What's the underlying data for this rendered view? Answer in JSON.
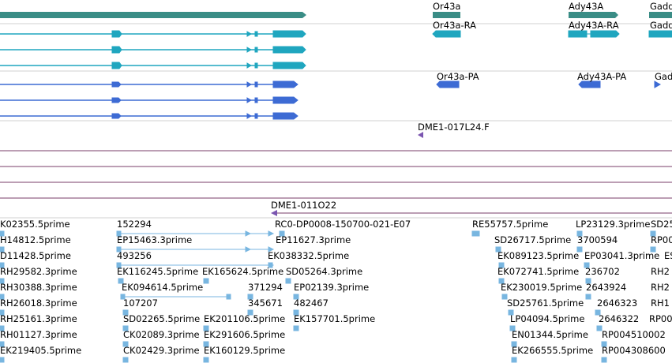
{
  "viewer": {
    "colors": {
      "gene": "#3a8d86",
      "transcript_cyan": "#1fa6bf",
      "transcript_blue": "#3d6bd4",
      "bac_end": "#7a55b0",
      "bac_line": "#7a3d6a",
      "est": "#78b6e0",
      "separator": "#d0d0d0"
    },
    "tracks": {
      "gene_labels": [
        "Or43a",
        "Ady43A",
        "Gadd"
      ],
      "cyan_transcript_labels": [
        "Or43a-RA",
        "Ady43A-RA",
        "Gadd"
      ],
      "blue_transcript_labels": [
        "Or43a-PA",
        "Ady43A-PA",
        "Gad"
      ],
      "bac_end_labels": [
        "DME1-017L24.F",
        "DME1-011O22"
      ],
      "est_labels": {
        "row1": [
          "K02355.5prime",
          "152294",
          "RC0-DP0008-150700-021-E07",
          "RE55757.5prime",
          "LP23129.3prime",
          "SD25"
        ],
        "row2": [
          "H14812.5prime",
          "EP15463.3prime",
          "EP11627.3prime",
          "SD26717.5prime",
          "3700594",
          "RP00"
        ],
        "row3": [
          "D11428.5prime",
          "493256",
          "EK038332.5prime",
          "EK089123.5prime",
          "EP03041.3prime",
          "ES"
        ],
        "row4": [
          "RH29582.3prime",
          "EK116245.5prime",
          "EK165624.5prime",
          "SD05264.3prime",
          "EK072741.5prime",
          "236702",
          "RH2"
        ],
        "row5": [
          "RH30388.3prime",
          "EK094614.5prime",
          "371294",
          "EP02139.3prime",
          "EK230019.5prime",
          "2643924",
          "RH2"
        ],
        "row6": [
          "RH26018.3prime",
          "107207",
          "345671",
          "482467",
          "SD25761.5prime",
          "2646323",
          "RH1"
        ],
        "row7": [
          "RH25161.3prime",
          "SD02265.5prime",
          "EK201106.5prime",
          "EK157701.5prime",
          "LP04094.5prime",
          "2646322",
          "RP00"
        ],
        "row8": [
          "RH01127.3prime",
          "CK02089.3prime",
          "EK291606.5prime",
          "EN01344.5prime",
          "RP004510002"
        ],
        "row9": [
          "EK219405.5prime",
          "CK02429.3prime",
          "EK160129.5prime",
          "EK266555.5prime",
          "RP004308600"
        ]
      }
    }
  }
}
